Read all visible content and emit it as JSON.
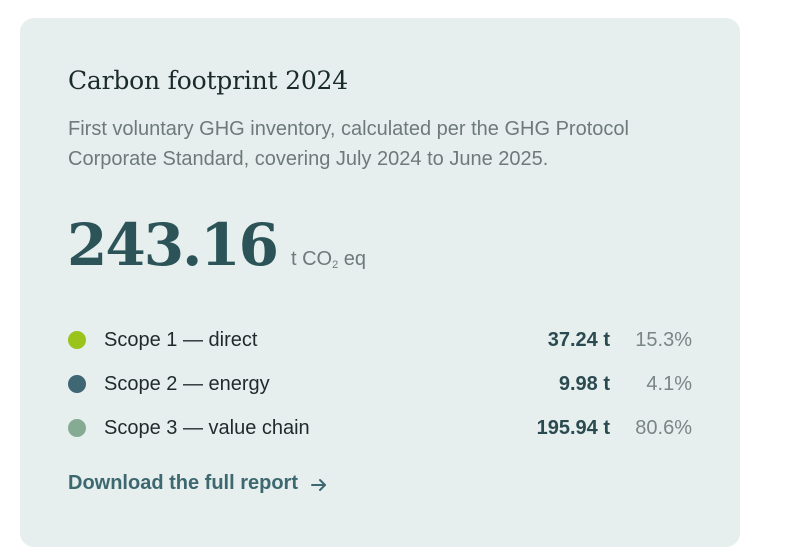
{
  "card": {
    "title": "Carbon footprint 2024",
    "subtitle": "First voluntary GHG inventory, calculated per the GHG Protocol Corporate Standard, covering July 2024 to June 2025.",
    "total": {
      "value": "243.16",
      "unit_prefix": "t CO",
      "unit_subscript": "2",
      "unit_suffix": " eq"
    },
    "scopes": [
      {
        "label": "Scope 1 — direct",
        "amount": "37.24 t",
        "percent": "15.3%",
        "color": "#9ac31c"
      },
      {
        "label": "Scope 2 — energy",
        "amount": "9.98 t",
        "percent": "4.1%",
        "color": "#3f6673"
      },
      {
        "label": "Scope 3 — value chain",
        "amount": "195.94 t",
        "percent": "80.6%",
        "color": "#86ab93"
      }
    ],
    "download": {
      "label": "Download the full report",
      "icon": "arrow-right-icon"
    }
  }
}
